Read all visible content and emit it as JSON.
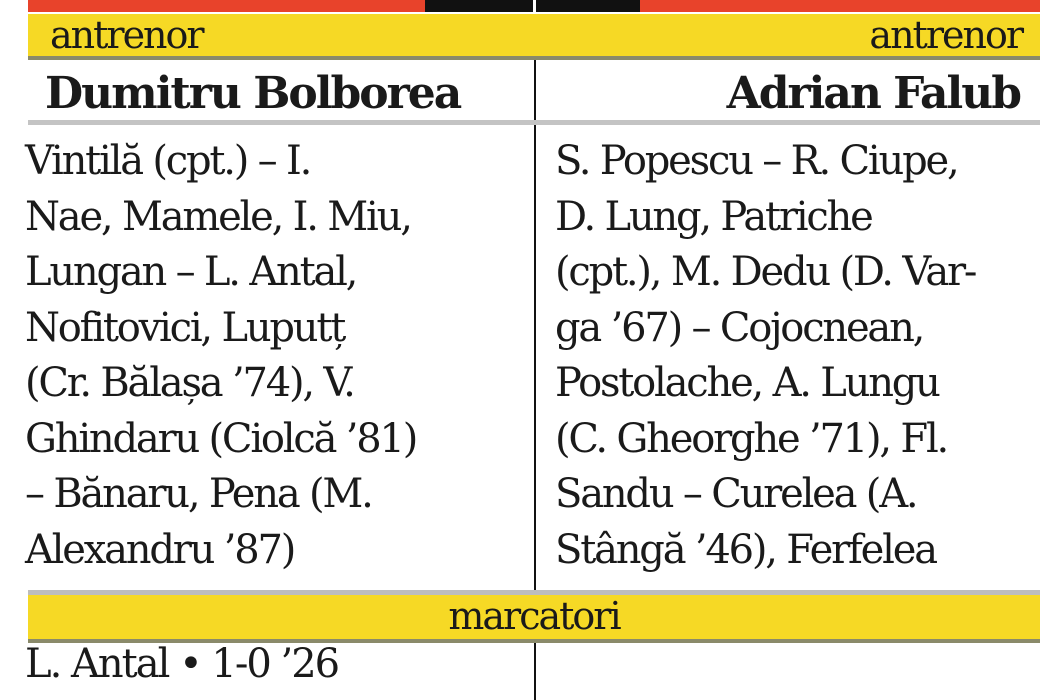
{
  "colors": {
    "accent_red": "#e8432b",
    "band_yellow": "#f6d925"
  },
  "home": {
    "coach_label": "antrenor",
    "coach": "Dumitru Bolborea",
    "lineup_lines": [
      "Vintilă (cpt.) – I.",
      "Nae, Mamele, I. Miu,",
      "Lungan – L. Antal,",
      "Nofitovici, Luputț",
      "(Cr. Bălașa ’74), V.",
      "Ghindaru (Ciolcă ’81)",
      "– Bănaru, Pena (M.",
      "Alexandru ’87)"
    ]
  },
  "away": {
    "coach_label": "antrenor",
    "coach": "Adrian Falub",
    "lineup_lines": [
      "S. Popescu – R. Ciupe,",
      "D. Lung, Patriche",
      "(cpt.), M. Dedu (D. Var-",
      "ga ’67) – Cojocnean,",
      "Postolache, A. Lungu",
      "(C. Gheorghe ’71), Fl.",
      "Sandu – Curelea (A.",
      "Stângă ’46), Ferfelea"
    ]
  },
  "scorers_label": "marcatori",
  "scorers": [
    "L. Antal • 1-0 ’26"
  ]
}
